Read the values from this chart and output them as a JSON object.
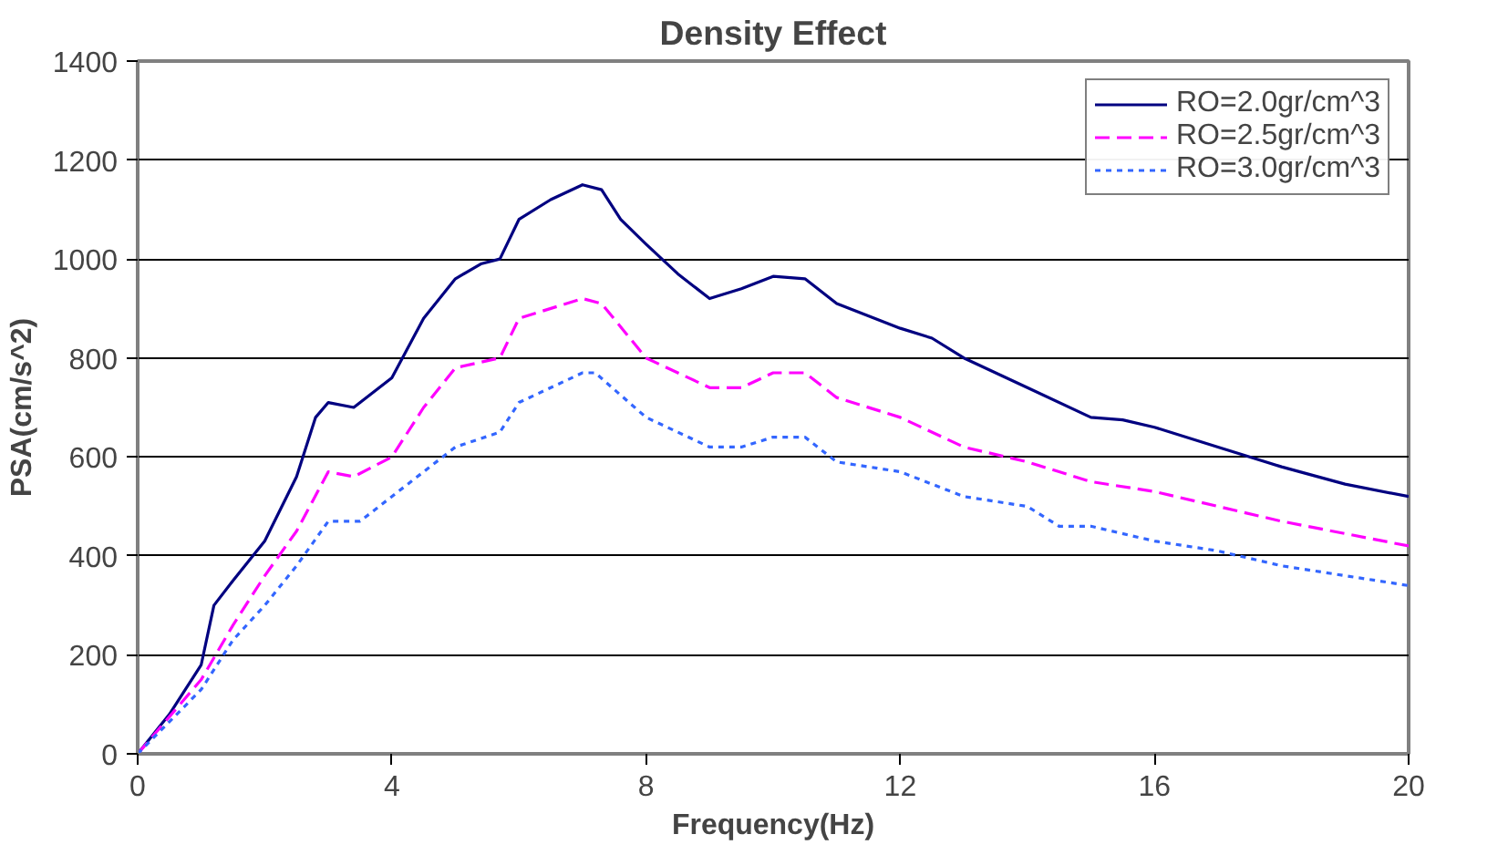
{
  "chart_data": {
    "type": "line",
    "title": "Density Effect",
    "xlabel": "Frequency(Hz)",
    "ylabel": "PSA(cm/s^2)",
    "xlim": [
      0,
      20
    ],
    "xticks": [
      0,
      4,
      8,
      12,
      16,
      20
    ],
    "ylim": [
      0,
      1400
    ],
    "yticks": [
      0,
      200,
      400,
      600,
      800,
      1000,
      1200,
      1400
    ],
    "grid": "y",
    "legend": "top right",
    "series": [
      {
        "name": "RO=2.0gr/cm^3",
        "color": "#000080",
        "line_style": "solid",
        "x": [
          0,
          0.5,
          1,
          1.2,
          1.5,
          2,
          2.5,
          2.8,
          3,
          3.4,
          4,
          4.5,
          5,
          5.4,
          5.7,
          6,
          6.5,
          7,
          7.3,
          7.6,
          8,
          8.5,
          9,
          9.5,
          10,
          10.5,
          11,
          12,
          12.5,
          13,
          14,
          15,
          15.5,
          16,
          17,
          18,
          19,
          20
        ],
        "values": [
          0,
          80,
          180,
          300,
          350,
          430,
          560,
          680,
          710,
          700,
          760,
          880,
          960,
          990,
          1000,
          1080,
          1120,
          1150,
          1140,
          1080,
          1030,
          970,
          920,
          940,
          965,
          960,
          910,
          860,
          840,
          800,
          740,
          680,
          675,
          660,
          620,
          580,
          545,
          520
        ]
      },
      {
        "name": "RO=2.5gr/cm^3",
        "color": "#ff00ff",
        "line_style": "dashed",
        "x": [
          0,
          1,
          1.5,
          2,
          2.5,
          3,
          3.4,
          4,
          4.5,
          5,
          5.7,
          6,
          7,
          7.3,
          8,
          9,
          9.5,
          10,
          10.5,
          11,
          12,
          13,
          14,
          15,
          16,
          18,
          20
        ],
        "values": [
          0,
          150,
          260,
          360,
          450,
          570,
          560,
          600,
          700,
          780,
          800,
          880,
          920,
          910,
          800,
          740,
          740,
          770,
          770,
          720,
          680,
          620,
          590,
          550,
          530,
          470,
          420
        ]
      },
      {
        "name": "RO=3.0gr/cm^3",
        "color": "#3366ff",
        "line_style": "dotted",
        "x": [
          0,
          1,
          1.5,
          2,
          2.5,
          3,
          3.5,
          4,
          5,
          5.7,
          6,
          7,
          7.2,
          8,
          9,
          9.5,
          10,
          10.5,
          11,
          12,
          13,
          14,
          14.5,
          15,
          16,
          17,
          18,
          20
        ],
        "values": [
          0,
          130,
          230,
          300,
          380,
          470,
          470,
          520,
          620,
          650,
          710,
          770,
          770,
          680,
          620,
          620,
          640,
          640,
          590,
          570,
          520,
          500,
          460,
          460,
          430,
          410,
          380,
          340
        ]
      }
    ]
  }
}
